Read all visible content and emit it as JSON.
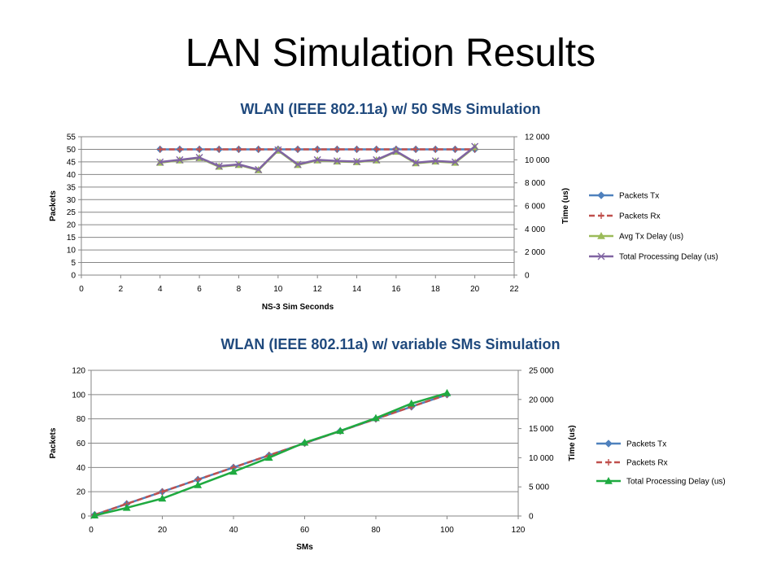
{
  "slide": {
    "title": "LAN Simulation Results"
  },
  "chart_data": [
    {
      "type": "line",
      "title": "WLAN (IEEE 802.11a) w/ 50 SMs Simulation",
      "xlabel": "NS-3 Sim Seconds",
      "ylabel": "Packets",
      "y2label": "Time (us)",
      "xlim": [
        0,
        22
      ],
      "ylim": [
        0,
        55
      ],
      "y2lim": [
        0,
        12000
      ],
      "xticks": [
        "0",
        "2",
        "4",
        "6",
        "8",
        "10",
        "12",
        "14",
        "16",
        "18",
        "20",
        "22"
      ],
      "yticks": [
        "0",
        "5",
        "10",
        "15",
        "20",
        "25",
        "30",
        "35",
        "40",
        "45",
        "50",
        "55"
      ],
      "y2ticks": [
        "0",
        "2 000",
        "4 000",
        "6 000",
        "8 000",
        "10 000",
        "12 000"
      ],
      "legend_position": "right",
      "grid": "horizontal",
      "x": [
        4,
        5,
        6,
        7,
        8,
        9,
        10,
        11,
        12,
        13,
        14,
        15,
        16,
        17,
        18,
        19,
        20
      ],
      "series": [
        {
          "name": "Packets Tx",
          "axis": "left",
          "color": "#4f81bd",
          "marker": "diamond",
          "dash": false,
          "values": [
            50,
            50,
            50,
            50,
            50,
            50,
            50,
            50,
            50,
            50,
            50,
            50,
            50,
            50,
            50,
            50,
            50
          ]
        },
        {
          "name": "Packets Rx",
          "axis": "left",
          "color": "#c0504d",
          "marker": "plus",
          "dash": true,
          "values": [
            50,
            50,
            50,
            50,
            50,
            50,
            50,
            50,
            50,
            50,
            50,
            50,
            50,
            50,
            50,
            50,
            50
          ]
        },
        {
          "name": "Avg Tx Delay (us)",
          "axis": "right",
          "color": "#9bbb59",
          "marker": "triangle",
          "dash": false,
          "values": [
            9750,
            9950,
            10150,
            9400,
            9550,
            9100,
            10800,
            9550,
            9950,
            9850,
            9800,
            9950,
            10700,
            9700,
            9850,
            9750,
            11100
          ]
        },
        {
          "name": "Total Processing Delay (us)",
          "axis": "right",
          "color": "#8064a2",
          "marker": "x",
          "dash": false,
          "values": [
            9800,
            10000,
            10200,
            9450,
            9600,
            9150,
            10850,
            9600,
            10000,
            9900,
            9850,
            10000,
            10750,
            9750,
            9900,
            9800,
            11150
          ]
        }
      ]
    },
    {
      "type": "line",
      "title": "WLAN (IEEE 802.11a) w/ variable SMs Simulation",
      "xlabel": "SMs",
      "ylabel": "Packets",
      "y2label": "Time (us)",
      "xlim": [
        0,
        120
      ],
      "ylim": [
        0,
        120
      ],
      "y2lim": [
        0,
        25000
      ],
      "xticks": [
        "0",
        "20",
        "40",
        "60",
        "80",
        "100",
        "120"
      ],
      "yticks": [
        "0",
        "20",
        "40",
        "60",
        "80",
        "100",
        "120"
      ],
      "y2ticks": [
        "0",
        "5 000",
        "10 000",
        "15 000",
        "20 000",
        "25 000"
      ],
      "legend_position": "right",
      "grid": "horizontal",
      "x": [
        1,
        10,
        20,
        30,
        40,
        50,
        60,
        70,
        80,
        90,
        100
      ],
      "series": [
        {
          "name": "Packets Tx",
          "axis": "left",
          "color": "#4f81bd",
          "marker": "diamond",
          "dash": false,
          "values": [
            1,
            10,
            20,
            30,
            40,
            50,
            60,
            70,
            80,
            90,
            100
          ]
        },
        {
          "name": "Packets Rx",
          "axis": "left",
          "color": "#c0504d",
          "marker": "plus",
          "dash": true,
          "values": [
            1,
            10,
            20,
            30,
            40,
            50,
            60,
            70,
            80,
            90,
            100
          ]
        },
        {
          "name": "Total Processing Delay (us)",
          "axis": "right",
          "color": "#1faa40",
          "marker": "triangle",
          "dash": false,
          "values": [
            100,
            1400,
            3000,
            5300,
            7600,
            10000,
            12600,
            14600,
            16800,
            19300,
            21100
          ]
        }
      ]
    }
  ]
}
